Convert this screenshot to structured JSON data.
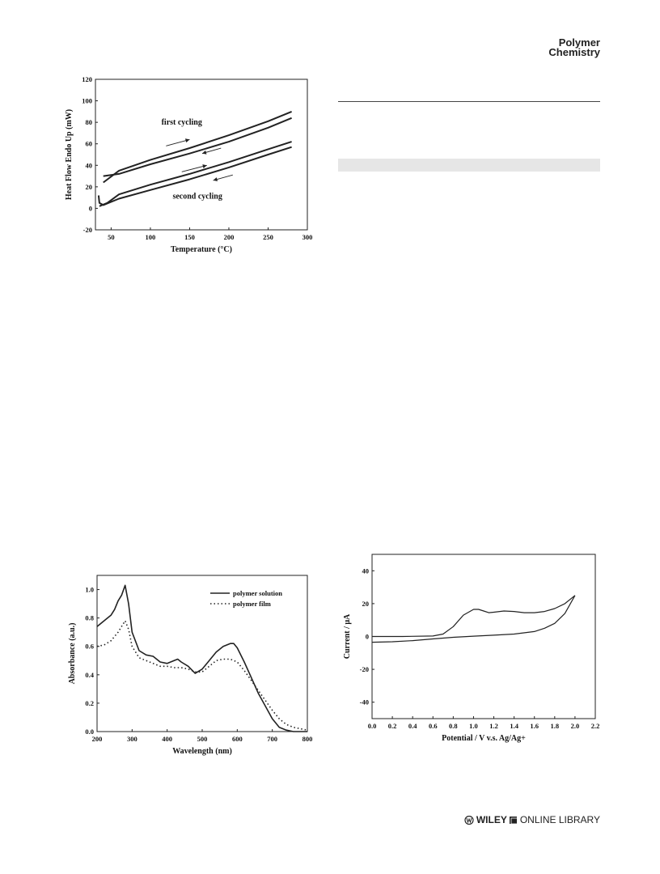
{
  "header": {
    "line1": "Polymer",
    "line2": "Chemistry"
  },
  "footer": {
    "wiley": "WILEY",
    "library": "ONLINE LIBRARY"
  },
  "chart_data": [
    {
      "type": "line",
      "title": "",
      "xlabel": "Temperature (°C)",
      "ylabel": "Heat Flow Endo Up (mW)",
      "xlim": [
        30,
        300
      ],
      "ylim": [
        -20,
        120
      ],
      "xticks": [
        50,
        100,
        150,
        200,
        250,
        300
      ],
      "yticks": [
        -20,
        0,
        20,
        40,
        60,
        80,
        100,
        120
      ],
      "annotations": [
        "first cycling",
        "second cycling"
      ],
      "series": [
        {
          "x": [
            40,
            60,
            100,
            150,
            200,
            250,
            280
          ],
          "y": [
            24,
            35,
            45,
            56,
            68,
            81,
            90
          ]
        },
        {
          "x": [
            280,
            250,
            200,
            150,
            100,
            60,
            40
          ],
          "y": [
            84,
            75,
            62,
            51,
            41,
            32,
            30
          ]
        },
        {
          "x": [
            35,
            45,
            60,
            100,
            150,
            200,
            250,
            280
          ],
          "y": [
            2,
            5,
            13,
            22,
            32,
            43,
            55,
            62
          ]
        },
        {
          "x": [
            280,
            250,
            200,
            150,
            100,
            60,
            40,
            35,
            34
          ],
          "y": [
            57,
            50,
            38,
            27,
            17,
            9,
            3,
            5,
            12
          ]
        }
      ]
    },
    {
      "type": "line",
      "title": "",
      "xlabel": "Wavelength (nm)",
      "ylabel": "Absorbance (a.u.)",
      "xlim": [
        200,
        800
      ],
      "ylim": [
        0.0,
        1.1
      ],
      "xticks": [
        200,
        300,
        400,
        500,
        600,
        700,
        800
      ],
      "yticks": [
        "0.0",
        "0.2",
        "0.4",
        "0.6",
        "0.8",
        "1.0"
      ],
      "legend": "top-right",
      "series": [
        {
          "name": "polymer solution",
          "x": [
            200,
            220,
            240,
            250,
            260,
            270,
            280,
            290,
            300,
            320,
            340,
            360,
            380,
            400,
            420,
            430,
            440,
            460,
            480,
            500,
            520,
            540,
            560,
            580,
            590,
            600,
            620,
            640,
            660,
            680,
            700,
            720,
            740,
            760,
            800
          ],
          "y": [
            0.74,
            0.78,
            0.82,
            0.86,
            0.92,
            0.96,
            1.03,
            0.9,
            0.7,
            0.57,
            0.54,
            0.53,
            0.49,
            0.48,
            0.5,
            0.51,
            0.49,
            0.46,
            0.41,
            0.44,
            0.5,
            0.56,
            0.6,
            0.62,
            0.62,
            0.59,
            0.49,
            0.38,
            0.27,
            0.18,
            0.09,
            0.03,
            0.01,
            0.0,
            0.0
          ]
        },
        {
          "name": "polymer film",
          "x": [
            200,
            220,
            240,
            260,
            280,
            290,
            300,
            320,
            340,
            360,
            380,
            400,
            420,
            440,
            460,
            480,
            500,
            520,
            540,
            560,
            580,
            600,
            620,
            640,
            660,
            680,
            700,
            720,
            740,
            760,
            780,
            800
          ],
          "y": [
            0.6,
            0.61,
            0.64,
            0.7,
            0.78,
            0.72,
            0.6,
            0.52,
            0.5,
            0.48,
            0.46,
            0.46,
            0.45,
            0.45,
            0.44,
            0.42,
            0.42,
            0.46,
            0.5,
            0.51,
            0.51,
            0.49,
            0.43,
            0.36,
            0.29,
            0.22,
            0.15,
            0.09,
            0.05,
            0.03,
            0.02,
            0.01
          ]
        }
      ]
    },
    {
      "type": "line",
      "title": "",
      "xlabel": "Potential / V v.s. Ag/Ag+",
      "ylabel": "Current / μA",
      "xlim": [
        0.0,
        2.2
      ],
      "ylim": [
        -50,
        50
      ],
      "xticks": [
        "0.0",
        "0.2",
        "0.4",
        "0.6",
        "0.8",
        "1.0",
        "1.2",
        "1.4",
        "1.6",
        "1.8",
        "2.0",
        "2.2"
      ],
      "yticks": [
        -40,
        -20,
        0,
        20,
        40
      ],
      "series": [
        {
          "x": [
            0.0,
            0.3,
            0.6,
            0.7,
            0.8,
            0.9,
            1.0,
            1.05,
            1.1,
            1.15,
            1.2,
            1.3,
            1.4,
            1.5,
            1.6,
            1.7,
            1.8,
            1.9,
            2.0
          ],
          "y": [
            0.0,
            0.0,
            0.3,
            1.5,
            6.0,
            13.0,
            16.5,
            16.5,
            15.5,
            14.5,
            14.8,
            15.5,
            15.2,
            14.5,
            14.5,
            15.2,
            17.0,
            20.0,
            25.0
          ]
        },
        {
          "x": [
            2.0,
            1.9,
            1.8,
            1.7,
            1.6,
            1.4,
            1.2,
            1.0,
            0.8,
            0.6,
            0.4,
            0.2,
            0.0
          ],
          "y": [
            25.0,
            14.0,
            8.0,
            5.0,
            3.0,
            1.5,
            0.8,
            0.2,
            -0.5,
            -1.5,
            -2.5,
            -3.2,
            -3.5
          ]
        }
      ]
    }
  ]
}
